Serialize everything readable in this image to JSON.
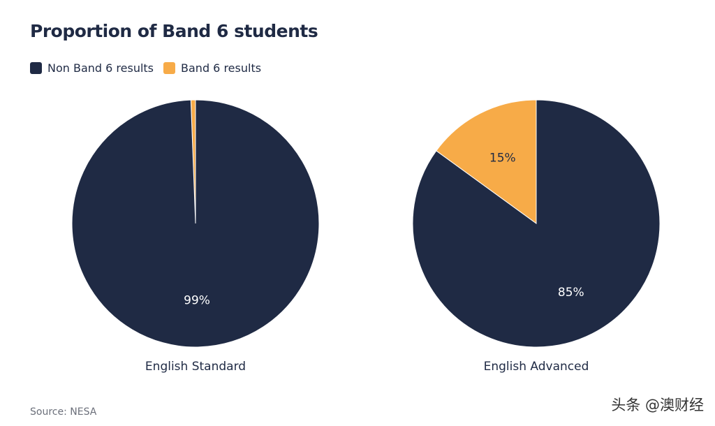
{
  "colors": {
    "non_band6": "#1f2a44",
    "band6": "#f7ab48",
    "label_on_dark": "#ffffff",
    "label_on_light": "#1f2a44"
  },
  "chart_data": {
    "type": "pie",
    "title": "Proportion of Band 6 students",
    "legend": {
      "placement": "top-left",
      "entries": [
        "Non Band 6 results",
        "Band 6 results"
      ]
    },
    "pies": [
      {
        "name": "English Standard",
        "slices": [
          {
            "label": "Non Band 6 results",
            "value": 99.4,
            "display": "99%"
          },
          {
            "label": "Band 6 results",
            "value": 0.6,
            "display": ""
          }
        ]
      },
      {
        "name": "English Advanced",
        "slices": [
          {
            "label": "Non Band 6 results",
            "value": 85,
            "display": "85%"
          },
          {
            "label": "Band 6 results",
            "value": 15,
            "display": "15%"
          }
        ]
      }
    ]
  },
  "footer": {
    "source": "Source: NESA",
    "watermark": "头条 @澳财经"
  }
}
